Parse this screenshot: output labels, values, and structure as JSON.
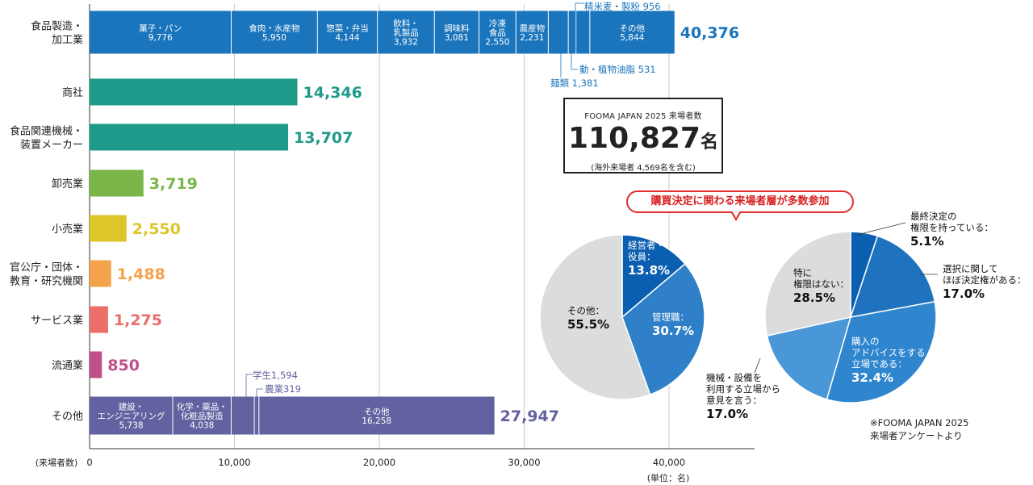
{
  "chart_data": [
    {
      "type": "bar",
      "orientation": "horizontal",
      "stacked": true,
      "categories": [
        "食品製造・加工業",
        "商社",
        "食品関連機械・装置メーカー",
        "卸売業",
        "小売業",
        "官公庁・団体・教育・研究機関",
        "サービス業",
        "流通業",
        "その他"
      ],
      "category_lines": [
        [
          "食品製造・",
          "加工業"
        ],
        [
          "商社"
        ],
        [
          "食品関連機械・",
          "装置メーカー"
        ],
        [
          "卸売業"
        ],
        [
          "小売業"
        ],
        [
          "官公庁・団体・",
          "教育・研究機関"
        ],
        [
          "サービス業"
        ],
        [
          "流通業"
        ],
        [
          "その他"
        ]
      ],
      "totals": [
        "40,376",
        "14,346",
        "13,707",
        "3,719",
        "2,550",
        "1,488",
        "1,275",
        "850",
        "27,947"
      ],
      "total_values": [
        40376,
        14346,
        13707,
        3719,
        2550,
        1488,
        1275,
        850,
        27947
      ],
      "colors": [
        "#1b75bc",
        "#1e9a8a",
        "#1e9a8a",
        "#7ab648",
        "#ddc52a",
        "#f4a24b",
        "#ec6e6a",
        "#c04f8a",
        "#6262a0"
      ],
      "segments": {
        "0": [
          {
            "lines": [
              "菓子・パン",
              "9,776"
            ],
            "value": 9776
          },
          {
            "lines": [
              "食肉・水産物",
              "5,950"
            ],
            "value": 5950
          },
          {
            "lines": [
              "惣菜・弁当",
              "4,144"
            ],
            "value": 4144
          },
          {
            "lines": [
              "飲料・",
              "乳製品",
              "3,932"
            ],
            "value": 3932
          },
          {
            "lines": [
              "調味料",
              "3,081"
            ],
            "value": 3081
          },
          {
            "lines": [
              "冷凍",
              "食品",
              "2,550"
            ],
            "value": 2550
          },
          {
            "lines": [
              "農産物",
              "2,231"
            ],
            "value": 2231
          },
          {
            "lines": [],
            "value": 1381
          },
          {
            "lines": [],
            "value": 531
          },
          {
            "lines": [],
            "value": 956
          },
          {
            "lines": [
              "その他",
              "5,844"
            ],
            "value": 5844
          }
        ],
        "8": [
          {
            "lines": [
              "建設・",
              "エンジニアリング",
              "5,738"
            ],
            "value": 5738
          },
          {
            "lines": [
              "化学・薬品・",
              "化粧品製造",
              "4,038"
            ],
            "value": 4038
          },
          {
            "lines": [],
            "value": 1594
          },
          {
            "lines": [],
            "value": 319
          },
          {
            "lines": [
              "その他",
              "16,258"
            ],
            "value": 16258
          }
        ]
      },
      "annotations": [
        {
          "text": "精米麦・製粉 956",
          "value": 956
        },
        {
          "text": "動・植物油脂 531",
          "value": 531
        },
        {
          "text": "麺類 1,381",
          "value": 1381
        },
        {
          "text": "学生1,594",
          "value": 1594
        },
        {
          "text": "農業319",
          "value": 319
        }
      ],
      "xlim": [
        0,
        45000
      ],
      "xticks": [
        0,
        10000,
        20000,
        30000,
        40000
      ],
      "xtick_labels": [
        "0",
        "10,000",
        "20,000",
        "30,000",
        "40,000"
      ],
      "ylabel": "(来場者数)",
      "unit_label": "(単位：名)",
      "grid": true
    },
    {
      "type": "pie",
      "slices": [
        {
          "lines": [
            "経営者・",
            "役員："
          ],
          "pct": "13.8%",
          "value": 13.8,
          "color": "#0b5fb0"
        },
        {
          "lines": [
            "管理職："
          ],
          "pct": "30.7%",
          "value": 30.7,
          "color": "#2f80c8"
        },
        {
          "lines": [
            "その他："
          ],
          "pct": "55.5%",
          "value": 55.5,
          "color": "#dcdcdc"
        }
      ]
    },
    {
      "type": "pie",
      "slices": [
        {
          "lines": [
            "最終決定の",
            "権限を持っている："
          ],
          "pct": "5.1%",
          "value": 5.1,
          "color": "#0b5fb0"
        },
        {
          "lines": [
            "選択に関して",
            "ほぼ決定権がある："
          ],
          "pct": "17.0%",
          "value": 17.0,
          "color": "#1f72bd"
        },
        {
          "lines": [
            "購入の",
            "アドバイスをする",
            "立場である："
          ],
          "pct": "32.4%",
          "value": 32.4,
          "color": "#2f86cf"
        },
        {
          "lines": [
            "機械・設備を",
            "利用する立場から",
            "意見を言う："
          ],
          "pct": "17.0%",
          "value": 17.0,
          "color": "#4a97d8"
        },
        {
          "lines": [
            "特に",
            "権限はない："
          ],
          "pct": "28.5%",
          "value": 28.5,
          "color": "#dcdcdc"
        }
      ]
    }
  ],
  "total_box": {
    "title": "FOOMA JAPAN 2025 来場者数",
    "number": "110,827",
    "unit": "名",
    "note": "(海外来場者 4,569名を含む)"
  },
  "callout": "購買決定に関わる来場者層が多数参加",
  "note_lines": [
    "※FOOMA JAPAN 2025",
    "来場者アンケートより"
  ]
}
